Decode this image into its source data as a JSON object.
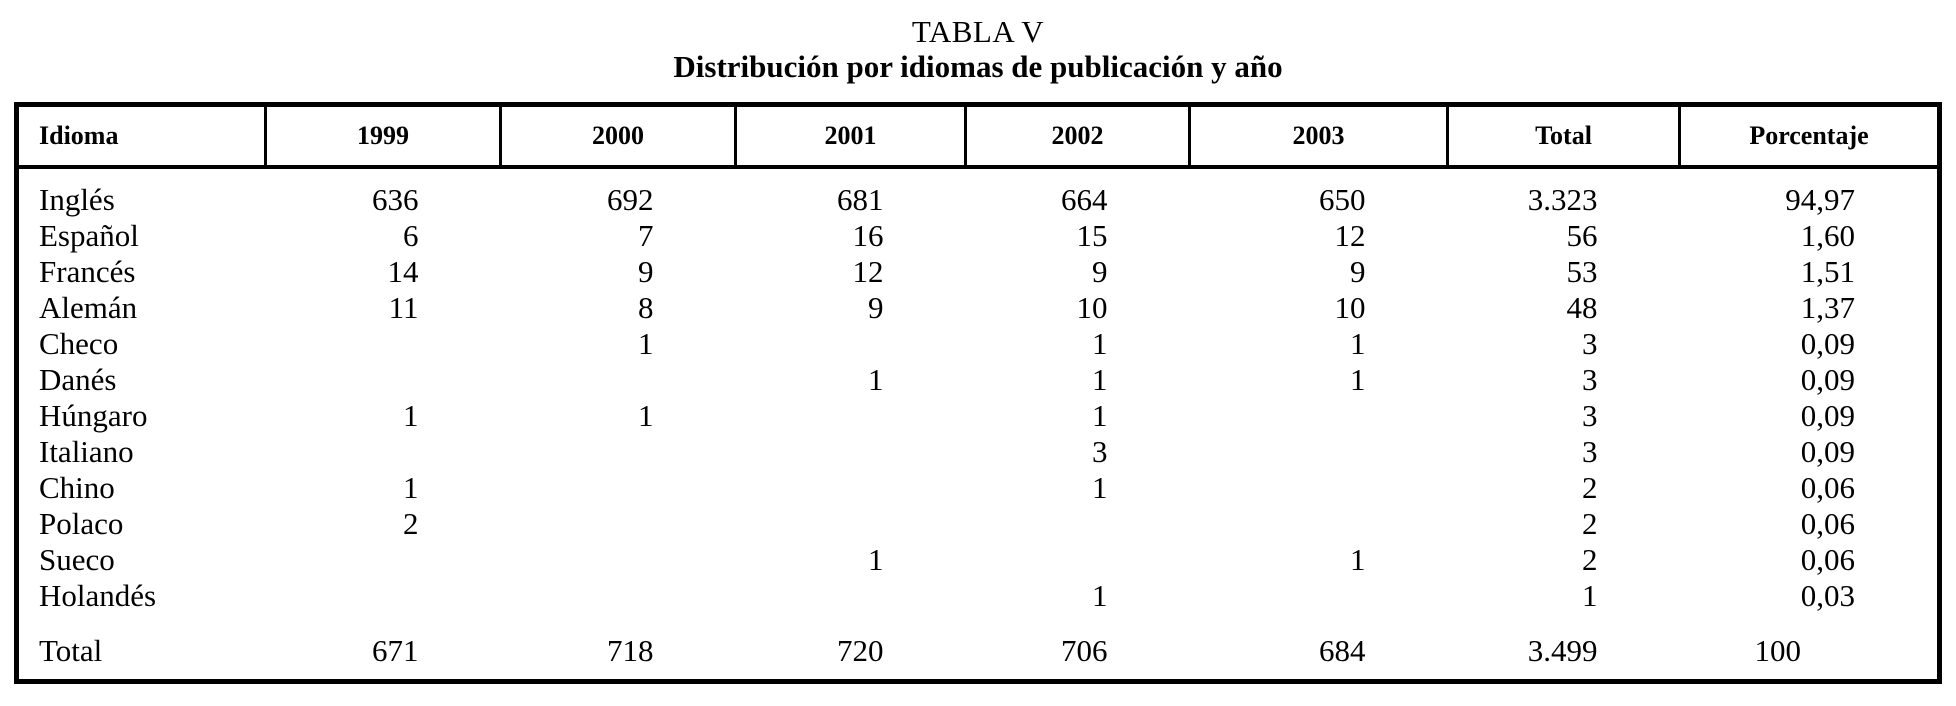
{
  "table": {
    "caption_line1": "TABLA V",
    "caption_line2": "Distribución por idiomas de publicación y año",
    "columns": [
      "Idioma",
      "1999",
      "2000",
      "2001",
      "2002",
      "2003",
      "Total",
      "Porcentaje"
    ],
    "rows": [
      {
        "idioma": "Inglés",
        "values": [
          "636",
          "692",
          "681",
          "664",
          "650",
          "3.323",
          "94,97"
        ]
      },
      {
        "idioma": "Español",
        "values": [
          "6",
          "7",
          "16",
          "15",
          "12",
          "56",
          "1,60"
        ]
      },
      {
        "idioma": "Francés",
        "values": [
          "14",
          "9",
          "12",
          "9",
          "9",
          "53",
          "1,51"
        ]
      },
      {
        "idioma": "Alemán",
        "values": [
          "11",
          "8",
          "9",
          "10",
          "10",
          "48",
          "1,37"
        ]
      },
      {
        "idioma": "Checo",
        "values": [
          "",
          "1",
          "",
          "1",
          "1",
          "3",
          "0,09"
        ]
      },
      {
        "idioma": "Danés",
        "values": [
          "",
          "",
          "1",
          "1",
          "1",
          "3",
          "0,09"
        ]
      },
      {
        "idioma": "Húngaro",
        "values": [
          "1",
          "1",
          "",
          "1",
          "",
          "3",
          "0,09"
        ]
      },
      {
        "idioma": "Italiano",
        "values": [
          "",
          "",
          "",
          "3",
          "",
          "3",
          "0,09"
        ]
      },
      {
        "idioma": "Chino",
        "values": [
          "1",
          "",
          "",
          "1",
          "",
          "2",
          "0,06"
        ]
      },
      {
        "idioma": "Polaco",
        "values": [
          "2",
          "",
          "",
          "",
          "",
          "2",
          "0,06"
        ]
      },
      {
        "idioma": "Sueco",
        "values": [
          "",
          "",
          "1",
          "",
          "1",
          "2",
          "0,06"
        ]
      },
      {
        "idioma": "Holandés",
        "values": [
          "",
          "",
          "",
          "1",
          "",
          "1",
          "0,03"
        ]
      }
    ],
    "total_row": {
      "idioma": "Total",
      "values": [
        "671",
        "718",
        "720",
        "706",
        "684",
        "3.499",
        "100"
      ]
    }
  },
  "chart_data": {
    "type": "table",
    "title": "TABLA V — Distribución por idiomas de publicación y año",
    "categories": [
      "1999",
      "2000",
      "2001",
      "2002",
      "2003",
      "Total",
      "Porcentaje"
    ],
    "series": [
      {
        "name": "Inglés",
        "values": [
          636,
          692,
          681,
          664,
          650,
          3323,
          94.97
        ]
      },
      {
        "name": "Español",
        "values": [
          6,
          7,
          16,
          15,
          12,
          56,
          1.6
        ]
      },
      {
        "name": "Francés",
        "values": [
          14,
          9,
          12,
          9,
          9,
          53,
          1.51
        ]
      },
      {
        "name": "Alemán",
        "values": [
          11,
          8,
          9,
          10,
          10,
          48,
          1.37
        ]
      },
      {
        "name": "Checo",
        "values": [
          null,
          1,
          null,
          1,
          1,
          3,
          0.09
        ]
      },
      {
        "name": "Danés",
        "values": [
          null,
          null,
          1,
          1,
          1,
          3,
          0.09
        ]
      },
      {
        "name": "Húngaro",
        "values": [
          1,
          1,
          null,
          1,
          null,
          3,
          0.09
        ]
      },
      {
        "name": "Italiano",
        "values": [
          null,
          null,
          null,
          3,
          null,
          3,
          0.09
        ]
      },
      {
        "name": "Chino",
        "values": [
          1,
          null,
          null,
          1,
          null,
          2,
          0.06
        ]
      },
      {
        "name": "Polaco",
        "values": [
          2,
          null,
          null,
          null,
          null,
          2,
          0.06
        ]
      },
      {
        "name": "Sueco",
        "values": [
          null,
          null,
          1,
          null,
          1,
          2,
          0.06
        ]
      },
      {
        "name": "Holandés",
        "values": [
          null,
          null,
          null,
          1,
          null,
          1,
          0.03
        ]
      },
      {
        "name": "Total",
        "values": [
          671,
          718,
          720,
          706,
          684,
          3499,
          100
        ]
      }
    ]
  }
}
